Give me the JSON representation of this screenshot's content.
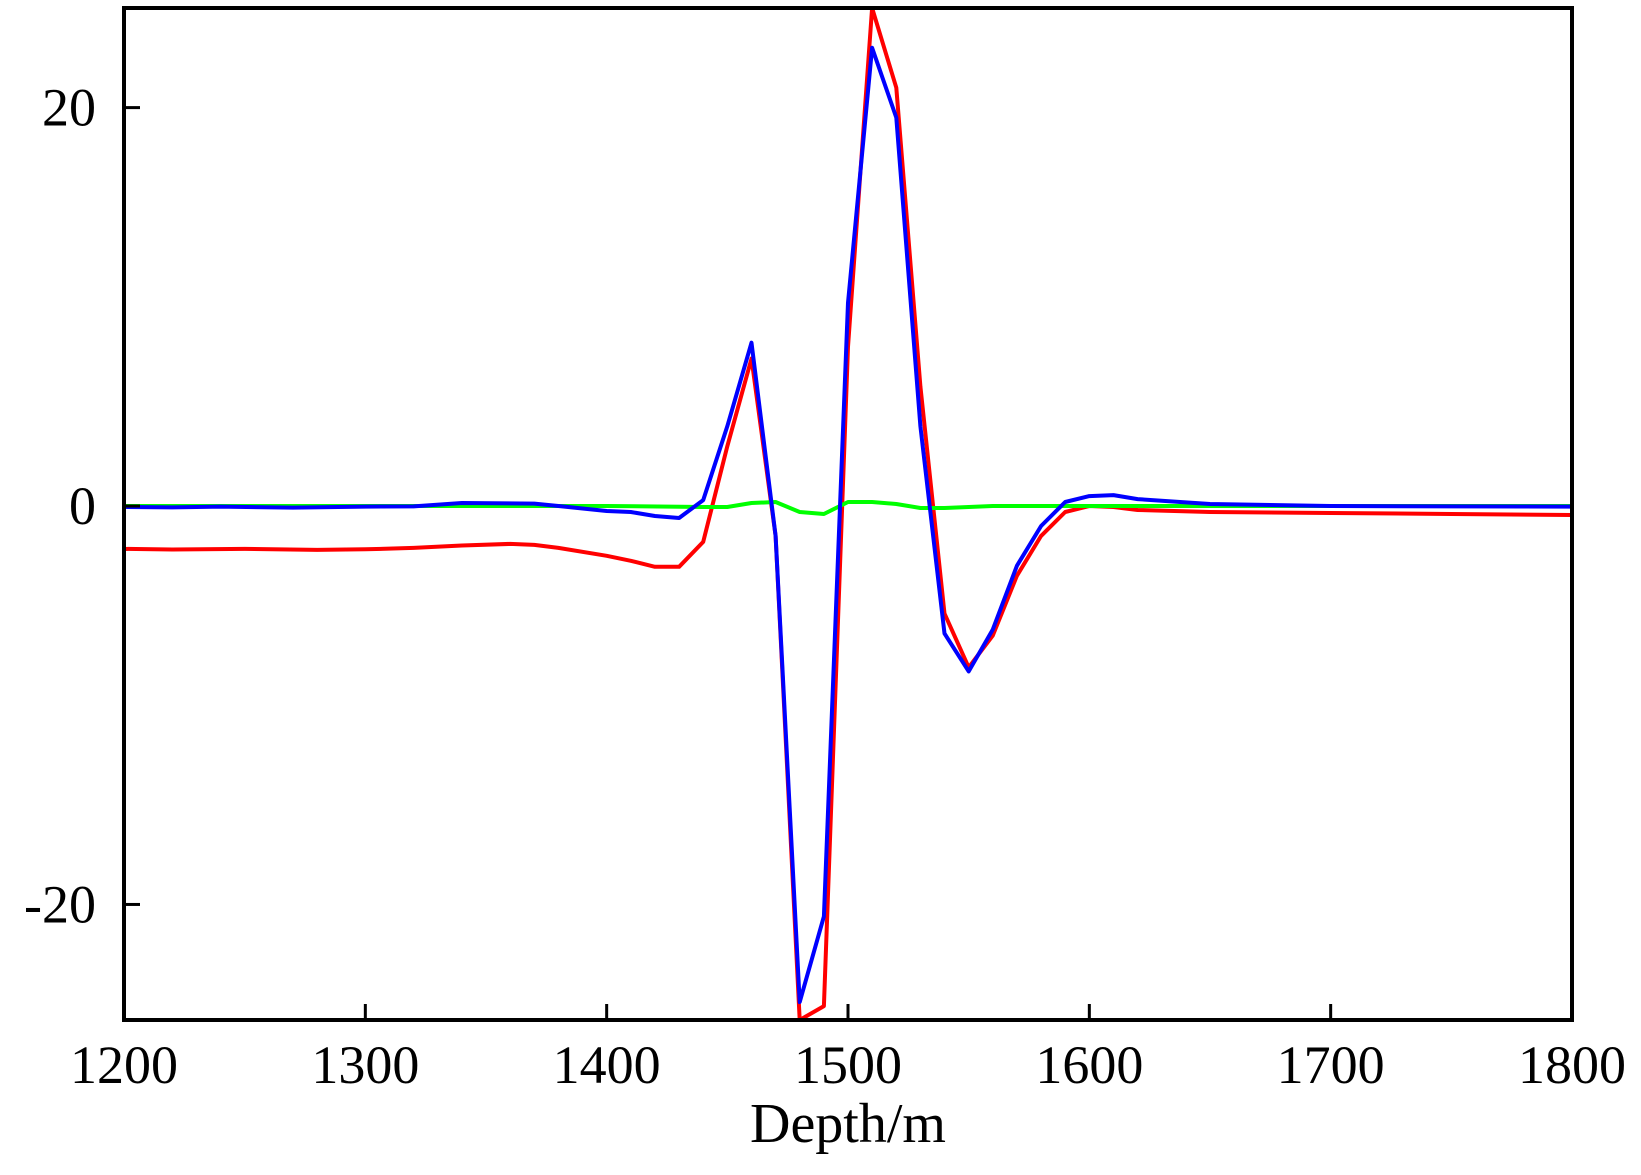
{
  "chart_data": {
    "type": "line",
    "title": "",
    "xlabel": "Depth/m",
    "ylabel": "",
    "xlim": [
      1200,
      1800
    ],
    "ylim": [
      -25.8,
      25
    ],
    "xticks": [
      1200,
      1300,
      1400,
      1500,
      1600,
      1700,
      1800
    ],
    "yticks": [
      -20,
      0,
      20
    ],
    "grid": false,
    "legend": "none",
    "series": [
      {
        "color": "#ff0000",
        "x": [
          1200,
          1220,
          1250,
          1280,
          1300,
          1320,
          1340,
          1360,
          1370,
          1380,
          1400,
          1410,
          1420,
          1430,
          1440,
          1450,
          1460,
          1470,
          1480,
          1490,
          1500,
          1510,
          1520,
          1530,
          1540,
          1550,
          1560,
          1570,
          1580,
          1590,
          1600,
          1610,
          1620,
          1650,
          1700,
          1750,
          1800
        ],
        "y": [
          -2.15,
          -2.18,
          -2.15,
          -2.2,
          -2.17,
          -2.1,
          -1.98,
          -1.9,
          -1.95,
          -2.1,
          -2.5,
          -2.75,
          -3.05,
          -3.05,
          -1.8,
          3.0,
          7.4,
          -1.5,
          -25.8,
          -25.1,
          8.0,
          25.0,
          21.0,
          6.0,
          -5.4,
          -8.1,
          -6.5,
          -3.5,
          -1.5,
          -0.3,
          0.0,
          -0.05,
          -0.2,
          -0.3,
          -0.35,
          -0.4,
          -0.45
        ]
      },
      {
        "color": "#00ff00",
        "x": [
          1200,
          1300,
          1400,
          1440,
          1450,
          1460,
          1470,
          1480,
          1490,
          1500,
          1510,
          1520,
          1530,
          1540,
          1560,
          1600,
          1650,
          1700,
          1800
        ],
        "y": [
          0,
          0,
          0,
          -0.05,
          -0.05,
          0.15,
          0.2,
          -0.3,
          -0.4,
          0.2,
          0.2,
          0.1,
          -0.1,
          -0.1,
          0.0,
          0.0,
          0.0,
          0.0,
          0.0
        ]
      },
      {
        "color": "#0000ff",
        "x": [
          1200,
          1220,
          1240,
          1270,
          1300,
          1320,
          1340,
          1370,
          1380,
          1400,
          1410,
          1420,
          1430,
          1440,
          1450,
          1460,
          1470,
          1480,
          1490,
          1500,
          1510,
          1520,
          1530,
          1540,
          1550,
          1560,
          1570,
          1580,
          1590,
          1600,
          1610,
          1620,
          1650,
          1700,
          1750,
          1800
        ],
        "y": [
          -0.05,
          -0.07,
          -0.03,
          -0.08,
          -0.03,
          -0.02,
          0.15,
          0.12,
          0.0,
          -0.25,
          -0.3,
          -0.5,
          -0.6,
          0.3,
          4.0,
          8.2,
          -1.5,
          -24.9,
          -20.6,
          10.2,
          23.0,
          19.5,
          4.0,
          -6.4,
          -8.3,
          -6.2,
          -3.0,
          -1.0,
          0.2,
          0.5,
          0.55,
          0.35,
          0.1,
          0.0,
          -0.02,
          -0.03
        ]
      }
    ]
  }
}
